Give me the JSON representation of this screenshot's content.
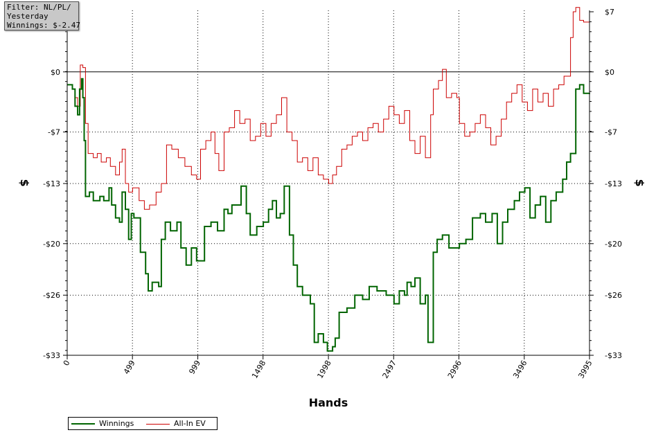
{
  "filter": {
    "line1": "Filter: NL/PL/",
    "line2": "Yesterday",
    "line3": "Winnings: $-2.47"
  },
  "colors": {
    "winnings": "#006400",
    "allin_ev": "#cc0000",
    "grid": "#000000"
  },
  "chart_data": {
    "type": "line",
    "xlabel": "Hands",
    "ylabel": "$",
    "ylabel_right": "$",
    "xlim": [
      0,
      3995
    ],
    "ylim": [
      -33,
      7.5
    ],
    "grid": true,
    "legend_position": "bottom-left",
    "x_ticks": [
      0,
      499,
      999,
      1498,
      1998,
      2497,
      2996,
      3496,
      3995
    ],
    "x_tick_labels": [
      "0",
      "499",
      "999",
      "1498",
      "1998",
      "2497",
      "2996",
      "3496",
      "3995"
    ],
    "y_ticks": [
      7,
      0,
      -7,
      -13,
      -20,
      -26,
      -33
    ],
    "y_tick_labels": [
      "$7",
      "$0",
      "-$7",
      "-$13",
      "-$20",
      "-$26",
      "-$33"
    ],
    "series": [
      {
        "name": "Winnings",
        "color": "#006400",
        "points": [
          [
            0,
            -1.5
          ],
          [
            40,
            -2
          ],
          [
            60,
            -4
          ],
          [
            80,
            -5
          ],
          [
            95,
            -2
          ],
          [
            110,
            -0.8
          ],
          [
            120,
            -3
          ],
          [
            130,
            -8
          ],
          [
            140,
            -14.5
          ],
          [
            170,
            -14
          ],
          [
            200,
            -15
          ],
          [
            250,
            -14.5
          ],
          [
            280,
            -15
          ],
          [
            320,
            -13.5
          ],
          [
            340,
            -15.5
          ],
          [
            370,
            -17
          ],
          [
            400,
            -17.5
          ],
          [
            420,
            -14
          ],
          [
            445,
            -16
          ],
          [
            470,
            -19.5
          ],
          [
            490,
            -16.5
          ],
          [
            510,
            -17
          ],
          [
            560,
            -21
          ],
          [
            600,
            -23.5
          ],
          [
            620,
            -25.5
          ],
          [
            650,
            -24.5
          ],
          [
            700,
            -25
          ],
          [
            720,
            -19.5
          ],
          [
            750,
            -17.5
          ],
          [
            790,
            -18.5
          ],
          [
            840,
            -17.5
          ],
          [
            870,
            -20.5
          ],
          [
            910,
            -22.5
          ],
          [
            950,
            -20.5
          ],
          [
            990,
            -22
          ],
          [
            1050,
            -18
          ],
          [
            1100,
            -17.5
          ],
          [
            1150,
            -18.5
          ],
          [
            1200,
            -16
          ],
          [
            1230,
            -16.5
          ],
          [
            1260,
            -15.5
          ],
          [
            1330,
            -13.3
          ],
          [
            1370,
            -16.5
          ],
          [
            1400,
            -19
          ],
          [
            1450,
            -18
          ],
          [
            1500,
            -17.5
          ],
          [
            1540,
            -16
          ],
          [
            1570,
            -15
          ],
          [
            1600,
            -17
          ],
          [
            1630,
            -16.5
          ],
          [
            1660,
            -13.3
          ],
          [
            1700,
            -19
          ],
          [
            1730,
            -22.5
          ],
          [
            1760,
            -25
          ],
          [
            1800,
            -26
          ],
          [
            1860,
            -27
          ],
          [
            1890,
            -31.5
          ],
          [
            1920,
            -30.5
          ],
          [
            1960,
            -31.5
          ],
          [
            1990,
            -32.5
          ],
          [
            2030,
            -32
          ],
          [
            2050,
            -31
          ],
          [
            2080,
            -28
          ],
          [
            2140,
            -27.5
          ],
          [
            2200,
            -26
          ],
          [
            2260,
            -26.5
          ],
          [
            2310,
            -25
          ],
          [
            2370,
            -25.5
          ],
          [
            2440,
            -26
          ],
          [
            2500,
            -27
          ],
          [
            2540,
            -25.5
          ],
          [
            2580,
            -26
          ],
          [
            2600,
            -24.5
          ],
          [
            2630,
            -25
          ],
          [
            2660,
            -24
          ],
          [
            2700,
            -27
          ],
          [
            2740,
            -26
          ],
          [
            2760,
            -31.5
          ],
          [
            2780,
            -31.5
          ],
          [
            2800,
            -21
          ],
          [
            2830,
            -19.5
          ],
          [
            2870,
            -19
          ],
          [
            2920,
            -20.5
          ],
          [
            2960,
            -20.5
          ],
          [
            3000,
            -20
          ],
          [
            3050,
            -19.5
          ],
          [
            3100,
            -17
          ],
          [
            3160,
            -16.5
          ],
          [
            3200,
            -17.5
          ],
          [
            3250,
            -16.5
          ],
          [
            3290,
            -20
          ],
          [
            3330,
            -17.5
          ],
          [
            3370,
            -16
          ],
          [
            3420,
            -15
          ],
          [
            3460,
            -14
          ],
          [
            3500,
            -13.5
          ],
          [
            3540,
            -17
          ],
          [
            3580,
            -15.5
          ],
          [
            3620,
            -14.5
          ],
          [
            3660,
            -17.5
          ],
          [
            3700,
            -15
          ],
          [
            3740,
            -14
          ],
          [
            3790,
            -12.5
          ],
          [
            3820,
            -10.5
          ],
          [
            3850,
            -9.5
          ],
          [
            3890,
            -2
          ],
          [
            3920,
            -1.5
          ],
          [
            3950,
            -2.5
          ],
          [
            3995,
            -2.47
          ]
        ]
      },
      {
        "name": "All-In EV",
        "color": "#cc0000",
        "points": [
          [
            0,
            -1.5
          ],
          [
            40,
            -2
          ],
          [
            60,
            -3
          ],
          [
            80,
            -4
          ],
          [
            100,
            0.8
          ],
          [
            120,
            0.5
          ],
          [
            140,
            -6
          ],
          [
            160,
            -9.5
          ],
          [
            200,
            -10
          ],
          [
            230,
            -9.5
          ],
          [
            260,
            -10.5
          ],
          [
            300,
            -10
          ],
          [
            330,
            -11
          ],
          [
            370,
            -12
          ],
          [
            400,
            -10.5
          ],
          [
            420,
            -9
          ],
          [
            445,
            -13
          ],
          [
            470,
            -14
          ],
          [
            500,
            -13.5
          ],
          [
            550,
            -15
          ],
          [
            590,
            -16
          ],
          [
            630,
            -15.5
          ],
          [
            680,
            -14
          ],
          [
            720,
            -13
          ],
          [
            760,
            -8.5
          ],
          [
            800,
            -9
          ],
          [
            850,
            -10
          ],
          [
            900,
            -11
          ],
          [
            950,
            -12
          ],
          [
            990,
            -12.5
          ],
          [
            1020,
            -9
          ],
          [
            1060,
            -8
          ],
          [
            1100,
            -7
          ],
          [
            1130,
            -9.5
          ],
          [
            1160,
            -11.5
          ],
          [
            1200,
            -7
          ],
          [
            1240,
            -6.5
          ],
          [
            1280,
            -4.5
          ],
          [
            1320,
            -6
          ],
          [
            1360,
            -5.5
          ],
          [
            1400,
            -8
          ],
          [
            1440,
            -7.5
          ],
          [
            1480,
            -6
          ],
          [
            1520,
            -7.5
          ],
          [
            1560,
            -6
          ],
          [
            1600,
            -5
          ],
          [
            1640,
            -3
          ],
          [
            1680,
            -7
          ],
          [
            1720,
            -8
          ],
          [
            1760,
            -10.5
          ],
          [
            1800,
            -10
          ],
          [
            1840,
            -11.5
          ],
          [
            1880,
            -10
          ],
          [
            1920,
            -12
          ],
          [
            1960,
            -12.5
          ],
          [
            2000,
            -13
          ],
          [
            2030,
            -12
          ],
          [
            2060,
            -11
          ],
          [
            2100,
            -9
          ],
          [
            2140,
            -8.5
          ],
          [
            2180,
            -7.5
          ],
          [
            2220,
            -7
          ],
          [
            2260,
            -8
          ],
          [
            2300,
            -6.5
          ],
          [
            2340,
            -6
          ],
          [
            2380,
            -7
          ],
          [
            2420,
            -5.5
          ],
          [
            2460,
            -4
          ],
          [
            2500,
            -5
          ],
          [
            2540,
            -6
          ],
          [
            2580,
            -4.5
          ],
          [
            2620,
            -8
          ],
          [
            2660,
            -9.5
          ],
          [
            2700,
            -7.5
          ],
          [
            2740,
            -10
          ],
          [
            2780,
            -5
          ],
          [
            2800,
            -2
          ],
          [
            2840,
            -1
          ],
          [
            2870,
            0.3
          ],
          [
            2900,
            -3
          ],
          [
            2940,
            -2.5
          ],
          [
            2980,
            -3
          ],
          [
            3000,
            -6
          ],
          [
            3040,
            -7.5
          ],
          [
            3080,
            -7
          ],
          [
            3120,
            -6
          ],
          [
            3160,
            -5
          ],
          [
            3200,
            -6.5
          ],
          [
            3240,
            -8.5
          ],
          [
            3280,
            -7.5
          ],
          [
            3320,
            -5.5
          ],
          [
            3360,
            -3.5
          ],
          [
            3400,
            -2.5
          ],
          [
            3440,
            -1.5
          ],
          [
            3480,
            -3.5
          ],
          [
            3520,
            -4.5
          ],
          [
            3560,
            -2
          ],
          [
            3600,
            -3.5
          ],
          [
            3640,
            -2.5
          ],
          [
            3680,
            -4
          ],
          [
            3720,
            -2
          ],
          [
            3760,
            -1.5
          ],
          [
            3800,
            -0.5
          ],
          [
            3830,
            -0.5
          ],
          [
            3850,
            4
          ],
          [
            3870,
            7
          ],
          [
            3890,
            7.5
          ],
          [
            3920,
            6
          ],
          [
            3950,
            5.8
          ],
          [
            3995,
            5.5
          ]
        ]
      }
    ]
  }
}
